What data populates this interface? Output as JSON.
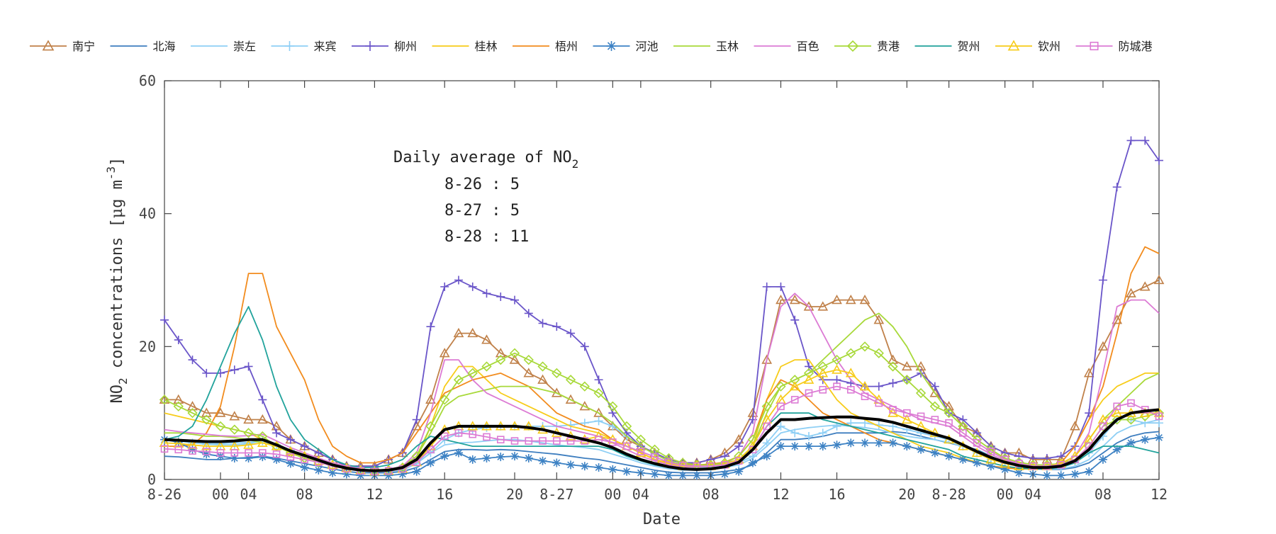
{
  "chart_data": {
    "type": "line",
    "xlabel": "Date",
    "ylabel_parts": {
      "base": "NO",
      "sub": "2",
      "rest": " concentrations [",
      "mu": "μ",
      "unit": "g m",
      "sup": "-3",
      "close": "]"
    },
    "ylim": [
      0,
      60
    ],
    "yticks": [
      0,
      20,
      40,
      60
    ],
    "xlim": [
      0,
      71
    ],
    "xticks": [
      {
        "x": 0,
        "label": "8-26"
      },
      {
        "x": 4,
        "label": "00"
      },
      {
        "x": 6,
        "label": "04"
      },
      {
        "x": 10,
        "label": "08"
      },
      {
        "x": 15,
        "label": "12"
      },
      {
        "x": 20,
        "label": "16"
      },
      {
        "x": 25,
        "label": "20"
      },
      {
        "x": 28,
        "label": "8-27"
      },
      {
        "x": 32,
        "label": "00"
      },
      {
        "x": 34,
        "label": "04"
      },
      {
        "x": 39,
        "label": "08"
      },
      {
        "x": 44,
        "label": "12"
      },
      {
        "x": 48,
        "label": "16"
      },
      {
        "x": 53,
        "label": "20"
      },
      {
        "x": 56,
        "label": "8-28"
      },
      {
        "x": 60,
        "label": "00"
      },
      {
        "x": 62,
        "label": "04"
      },
      {
        "x": 67,
        "label": "08"
      },
      {
        "x": 71,
        "label": "12"
      }
    ],
    "grid": false,
    "legend_position": "top",
    "annotation": {
      "title_base": "Daily average of NO",
      "title_sub": "2",
      "lines": [
        "8-26 : 5",
        "8-27 : 5",
        "8-28 : 11"
      ]
    },
    "series": [
      {
        "name": "南宁",
        "color": "#c0814a",
        "marker": "triangle",
        "values": [
          12,
          12,
          11,
          10,
          10,
          9.5,
          9,
          9,
          8,
          6,
          5,
          4,
          3,
          2,
          2,
          2,
          3,
          4,
          8,
          12,
          19,
          22,
          22,
          21,
          19,
          18,
          16,
          15,
          13,
          12,
          11,
          10,
          8,
          6,
          5,
          4,
          3,
          2.5,
          2.5,
          3,
          4,
          6,
          10,
          18,
          27,
          27,
          26,
          26,
          27,
          27,
          27,
          24,
          18,
          17,
          17,
          13,
          11,
          8,
          7,
          5,
          4,
          4,
          3,
          3,
          3,
          8,
          16,
          20,
          24,
          28,
          29,
          30
        ]
      },
      {
        "name": "北海",
        "color": "#3e7ebf",
        "marker": "none",
        "values": [
          3.5,
          3.4,
          3.2,
          3,
          3,
          3.2,
          3.3,
          3.5,
          3.2,
          2.8,
          2.4,
          2,
          1.6,
          1.2,
          1,
          1,
          1,
          1.2,
          1.8,
          3,
          4.2,
          4.5,
          4.5,
          4.4,
          4.5,
          4.4,
          4.2,
          4,
          3.8,
          3.5,
          3.2,
          3,
          2.6,
          2.2,
          1.8,
          1.4,
          1.1,
          1,
          1,
          1,
          1.2,
          1.5,
          2.2,
          4,
          6,
          6,
          6.2,
          6.5,
          7,
          7,
          7,
          7,
          7.2,
          7,
          6.5,
          6,
          5.5,
          5,
          4.5,
          3.5,
          2.5,
          2,
          1.6,
          1.5,
          1.5,
          1.8,
          2.5,
          4,
          5.5,
          6.5,
          7,
          7.2
        ]
      },
      {
        "name": "崇左",
        "color": "#8ecff5",
        "marker": "none",
        "values": [
          6,
          5.8,
          5.6,
          5.5,
          5.4,
          5.5,
          5.6,
          5.8,
          5,
          4.2,
          3.6,
          3,
          2.4,
          1.8,
          1.4,
          1.2,
          1.2,
          1.5,
          2.5,
          4,
          5.2,
          5.5,
          5.6,
          5.8,
          6,
          6,
          5.8,
          5.5,
          5.2,
          5,
          4.8,
          4.5,
          3.8,
          3.2,
          2.5,
          2,
          1.6,
          1.4,
          1.4,
          1.5,
          1.8,
          2.2,
          3.2,
          5,
          7,
          7.5,
          7.8,
          8,
          8.2,
          8,
          7.8,
          7.5,
          7,
          6.5,
          6.2,
          6,
          5.6,
          5,
          4.2,
          3.4,
          2.6,
          2,
          1.7,
          1.6,
          1.6,
          2,
          3,
          5,
          7,
          8,
          8.5,
          9
        ]
      },
      {
        "name": "来宾",
        "color": "#8ecff5",
        "marker": "plus",
        "values": [
          6,
          5.8,
          5.5,
          5.3,
          5.2,
          5.2,
          5.4,
          5.8,
          5.2,
          4.4,
          3.6,
          3,
          2.3,
          1.8,
          1.4,
          1.2,
          1.2,
          1.4,
          2.4,
          4,
          6,
          7,
          7.5,
          7.8,
          8,
          8,
          8,
          8,
          8,
          8.2,
          8.5,
          8.8,
          8,
          6.5,
          5,
          3.8,
          2.8,
          2,
          1.8,
          1.8,
          2,
          2.5,
          3.5,
          5.5,
          8,
          7,
          6.5,
          7,
          8,
          8.5,
          8.5,
          8.2,
          8,
          7.5,
          7,
          6.5,
          6,
          5,
          4,
          3,
          2.4,
          2,
          1.8,
          1.8,
          1.8,
          2.5,
          4,
          6.5,
          9,
          9,
          8.5,
          8.5
        ]
      },
      {
        "name": "柳州",
        "color": "#6a55c9",
        "marker": "plus",
        "values": [
          24,
          21,
          18,
          16,
          16,
          16.5,
          17,
          12,
          7,
          6,
          5,
          4,
          3,
          2,
          2,
          2,
          3,
          4,
          9,
          23,
          29,
          30,
          29,
          28,
          27.5,
          27,
          25,
          23.5,
          23,
          22,
          20,
          15,
          10,
          7,
          5,
          4,
          3,
          2.5,
          2.5,
          3,
          3.5,
          5,
          9,
          29,
          29,
          24,
          17,
          15,
          15,
          14.5,
          14,
          14,
          14.5,
          15,
          16,
          14,
          10,
          9,
          7,
          5,
          4,
          3.5,
          3.2,
          3.2,
          3.5,
          5,
          10,
          30,
          44,
          51,
          51,
          48
        ]
      },
      {
        "name": "桂林",
        "color": "#f7cc1a",
        "marker": "none",
        "values": [
          10,
          9.5,
          9,
          8.5,
          8,
          7.5,
          7,
          6,
          5,
          4,
          3.2,
          2.6,
          2,
          1.6,
          1.3,
          1.2,
          1.3,
          1.6,
          3,
          8,
          14,
          17,
          17,
          15,
          13,
          12,
          11,
          10,
          9,
          8,
          7.5,
          7,
          6,
          5,
          4,
          3,
          2.4,
          2,
          2,
          2,
          2.3,
          3,
          5,
          12,
          17,
          18,
          18,
          15,
          12,
          10,
          9,
          8,
          7,
          6,
          5,
          4.5,
          4,
          3.2,
          2.6,
          2,
          1.7,
          1.6,
          1.6,
          1.7,
          2.5,
          5,
          9,
          12,
          14,
          15,
          16,
          16
        ]
      },
      {
        "name": "梧州",
        "color": "#f28c1e",
        "marker": "none",
        "values": [
          5,
          5,
          5.2,
          7,
          11,
          20,
          31,
          31,
          23,
          19,
          15,
          9,
          5,
          3.5,
          2.5,
          2.5,
          3,
          4,
          7,
          10,
          13,
          14,
          15,
          15.5,
          16,
          15,
          14,
          12,
          10,
          9,
          8,
          7.5,
          6,
          5,
          4,
          3,
          2.5,
          2.2,
          2.2,
          2.3,
          2.6,
          3.5,
          6,
          12,
          15,
          14,
          12,
          10,
          9,
          8,
          7,
          6,
          5.5,
          5,
          4.5,
          4,
          3.5,
          3,
          2.5,
          2,
          1.8,
          1.6,
          1.6,
          1.8,
          2.5,
          5,
          9,
          14,
          22,
          31,
          35,
          34
        ]
      },
      {
        "name": "河池",
        "color": "#3d82c4",
        "marker": "star",
        "values": [
          6,
          5.6,
          4.5,
          3.8,
          3.5,
          3.2,
          3.2,
          3.4,
          3,
          2.4,
          1.8,
          1.4,
          1,
          0.8,
          0.6,
          0.6,
          0.6,
          0.8,
          1.2,
          2.5,
          3.5,
          4,
          3,
          3.2,
          3.4,
          3.5,
          3.2,
          2.8,
          2.5,
          2.2,
          2,
          1.8,
          1.5,
          1.2,
          1,
          0.8,
          0.6,
          0.6,
          0.6,
          0.6,
          0.8,
          1.2,
          2.5,
          3.5,
          5,
          5,
          5,
          5,
          5.2,
          5.5,
          5.5,
          5.5,
          5.5,
          5,
          4.5,
          4,
          3.5,
          3,
          2.5,
          2,
          1.5,
          1,
          0.8,
          0.6,
          0.6,
          0.8,
          1.2,
          3,
          4.5,
          5.5,
          6,
          6.3
        ]
      },
      {
        "name": "玉林",
        "color": "#a8d93a",
        "marker": "none",
        "values": [
          7,
          7,
          6.8,
          6.5,
          6.5,
          6.3,
          6,
          5.5,
          5,
          4.2,
          3.5,
          2.8,
          2.2,
          1.8,
          1.5,
          1.4,
          1.5,
          2,
          3.5,
          7,
          11,
          12.5,
          13,
          13.5,
          14,
          14,
          14,
          13.5,
          13,
          12,
          11,
          10,
          8.5,
          6.5,
          5,
          3.8,
          2.8,
          2.2,
          2,
          2,
          2.4,
          3,
          5,
          10,
          14,
          15,
          16,
          18,
          20,
          22,
          24,
          25,
          23,
          20,
          16,
          13,
          10,
          8,
          6,
          4.5,
          3.2,
          2.6,
          2.2,
          2.2,
          2.4,
          3.5,
          6,
          9,
          11,
          13,
          15,
          16
        ]
      },
      {
        "name": "百色",
        "color": "#dc7bd4",
        "marker": "none",
        "values": [
          7.5,
          7.2,
          7,
          6.8,
          6.6,
          6.5,
          6.6,
          6.8,
          5.8,
          4.8,
          4,
          3.2,
          2.5,
          2,
          1.6,
          1.4,
          1.5,
          2,
          4,
          10,
          18,
          18,
          15,
          13,
          12,
          11,
          10,
          9,
          8,
          7.5,
          7,
          6.5,
          5.5,
          4.5,
          3.5,
          2.8,
          2.2,
          1.9,
          1.9,
          2,
          2.4,
          3.5,
          7,
          18,
          26,
          28,
          26,
          22,
          18,
          15,
          13,
          12,
          11,
          10,
          9,
          8.5,
          8,
          6.5,
          5,
          3.8,
          2.8,
          2.2,
          2,
          2,
          2.4,
          3.5,
          7,
          16,
          26,
          27,
          27,
          25
        ]
      },
      {
        "name": "贵港",
        "color": "#a8d93a",
        "marker": "diamond",
        "values": [
          12,
          11,
          10,
          9,
          8,
          7.5,
          7,
          6.5,
          5,
          4,
          3.2,
          2.6,
          2,
          1.6,
          1.4,
          1.3,
          1.4,
          1.8,
          3.5,
          8,
          12,
          15,
          16,
          17,
          18,
          19,
          18,
          17,
          16,
          15,
          14,
          13,
          11,
          8,
          6,
          4.5,
          3.2,
          2.5,
          2.2,
          2.2,
          2.5,
          3.5,
          6,
          11,
          14,
          15,
          16,
          17,
          18,
          19,
          20,
          19,
          17,
          15,
          13,
          11,
          10,
          8,
          6,
          4.5,
          3.2,
          2.6,
          2.2,
          2.2,
          2.4,
          3,
          5,
          8,
          9,
          9,
          9.5,
          10
        ]
      },
      {
        "name": "贺州",
        "color": "#22a39c",
        "marker": "none",
        "values": [
          6,
          6.5,
          8,
          12,
          17,
          22,
          26,
          21,
          14,
          9,
          6,
          4.5,
          3,
          2.2,
          1.8,
          1.8,
          2.2,
          3,
          5,
          6.5,
          6,
          5.5,
          5,
          5,
          5,
          5,
          5,
          5,
          5,
          5,
          5,
          5,
          4.5,
          3.5,
          2.8,
          2.2,
          1.8,
          1.6,
          1.6,
          1.7,
          2,
          2.6,
          4.5,
          8,
          10,
          10,
          10,
          9,
          8.5,
          8,
          7.5,
          7,
          6.5,
          6,
          5.5,
          5,
          4.5,
          3.5,
          3,
          2.5,
          2,
          1.7,
          1.6,
          1.6,
          1.8,
          2.5,
          4,
          5,
          5,
          5,
          4.5,
          4
        ]
      },
      {
        "name": "钦州",
        "color": "#f7cc1a",
        "marker": "triangle",
        "values": [
          5.5,
          5.4,
          5.2,
          5,
          5,
          5,
          5.2,
          5.5,
          5,
          4.2,
          3.5,
          2.8,
          2.2,
          1.7,
          1.4,
          1.2,
          1.3,
          1.6,
          2.6,
          5,
          7.5,
          8,
          8,
          8,
          8,
          8,
          8,
          7.5,
          7,
          6.5,
          6,
          6.5,
          6,
          5,
          4,
          3,
          2.4,
          2,
          2,
          2,
          2.3,
          3,
          5,
          9,
          12,
          14,
          15,
          16,
          16.5,
          16,
          14,
          12,
          10,
          9,
          8,
          7,
          6,
          5,
          4,
          3,
          2.4,
          2,
          2,
          2,
          2.4,
          3.5,
          6,
          9,
          10,
          10,
          10,
          10
        ]
      },
      {
        "name": "防城港",
        "color": "#dc7bd4",
        "marker": "square",
        "values": [
          4.6,
          4.5,
          4.3,
          4.2,
          4,
          4,
          4,
          4,
          3.8,
          3.4,
          3,
          2.6,
          2,
          1.6,
          1.3,
          1.2,
          1.3,
          1.6,
          2.6,
          4.5,
          6.5,
          7,
          6.8,
          6.4,
          6,
          5.8,
          5.8,
          5.8,
          5.8,
          5.8,
          5.8,
          6,
          5.6,
          5,
          4.2,
          3.4,
          2.6,
          2.1,
          2,
          2,
          2.2,
          2.8,
          4.5,
          8,
          11,
          12,
          13,
          13.5,
          14,
          13.5,
          12.5,
          11.5,
          10.5,
          10,
          9.5,
          9,
          8.5,
          7,
          5.5,
          4.2,
          3,
          2.4,
          2,
          2,
          2.2,
          3,
          5,
          8,
          11,
          11.5,
          10.5,
          9.5
        ]
      },
      {
        "name": "",
        "color": "#000000",
        "marker": "none",
        "bold": true,
        "values": [
          6,
          5.9,
          5.8,
          5.7,
          5.7,
          5.8,
          6,
          6,
          5.2,
          4.3,
          3.6,
          2.9,
          2.2,
          1.7,
          1.4,
          1.3,
          1.4,
          1.8,
          3,
          5.5,
          7.5,
          8,
          8,
          8,
          8,
          8,
          7.8,
          7.5,
          7,
          6.5,
          6,
          5.5,
          4.8,
          3.8,
          3,
          2.4,
          1.9,
          1.6,
          1.5,
          1.6,
          1.9,
          2.6,
          4.5,
          7,
          9,
          9,
          9.2,
          9.3,
          9.4,
          9.4,
          9.2,
          9,
          8.6,
          8,
          7.4,
          6.8,
          6.2,
          5.2,
          4.2,
          3.3,
          2.6,
          2.1,
          1.8,
          1.8,
          2,
          2.8,
          4.5,
          7,
          9,
          10,
          10.3,
          10.5
        ]
      }
    ]
  }
}
